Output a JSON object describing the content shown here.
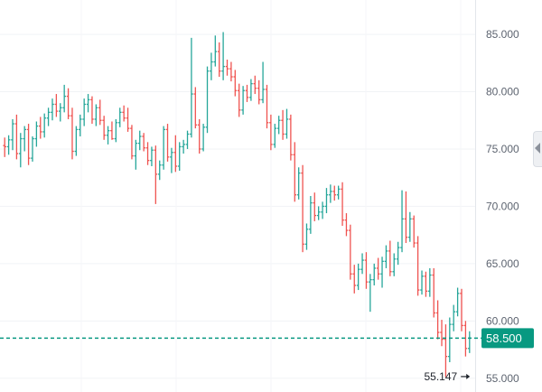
{
  "chart_data": {
    "type": "ohlc",
    "title": "",
    "xlabel": "",
    "ylabel": "",
    "ylim": [
      53.8,
      88
    ],
    "grid": true,
    "colors": {
      "up": "#26a69a",
      "down": "#ef5350",
      "price_line": "#089981",
      "badge": "#089981"
    },
    "y_ticks": [
      "55.000",
      "60.000",
      "65.000",
      "70.000",
      "75.000",
      "80.000",
      "85.000"
    ],
    "current_price": "58.500",
    "annotations": [
      {
        "text": "55.147",
        "value": 55.147,
        "bar_index": 118,
        "arrow": "right"
      }
    ],
    "bars": [
      [
        75.3,
        76.0,
        74.3,
        75.2
      ],
      [
        75.2,
        76.2,
        74.5,
        75.8
      ],
      [
        75.8,
        77.6,
        74.9,
        77.2
      ],
      [
        77.2,
        78.0,
        74.1,
        74.6
      ],
      [
        74.6,
        76.4,
        73.4,
        75.9
      ],
      [
        75.9,
        77.0,
        74.8,
        76.7
      ],
      [
        76.7,
        77.2,
        73.6,
        74.2
      ],
      [
        74.2,
        76.1,
        73.9,
        75.9
      ],
      [
        75.9,
        77.4,
        75.2,
        77.0
      ],
      [
        77.0,
        77.8,
        75.9,
        76.5
      ],
      [
        76.5,
        78.1,
        76.0,
        77.7
      ],
      [
        77.7,
        78.6,
        77.0,
        78.2
      ],
      [
        78.2,
        79.4,
        77.5,
        78.9
      ],
      [
        78.9,
        79.8,
        77.8,
        78.3
      ],
      [
        78.3,
        79.0,
        77.4,
        78.6
      ],
      [
        78.6,
        80.6,
        78.2,
        79.6
      ],
      [
        79.6,
        80.3,
        77.6,
        77.9
      ],
      [
        77.9,
        78.6,
        74.1,
        74.8
      ],
      [
        74.8,
        77.0,
        74.4,
        76.7
      ],
      [
        76.7,
        78.0,
        76.1,
        77.6
      ],
      [
        77.6,
        79.4,
        77.0,
        78.9
      ],
      [
        78.9,
        79.8,
        78.2,
        79.3
      ],
      [
        79.3,
        79.6,
        77.2,
        77.6
      ],
      [
        77.6,
        78.9,
        77.0,
        78.6
      ],
      [
        78.6,
        79.3,
        77.1,
        77.5
      ],
      [
        77.5,
        77.9,
        75.8,
        76.2
      ],
      [
        76.2,
        77.0,
        75.4,
        76.6
      ],
      [
        76.6,
        77.4,
        75.8,
        75.9
      ],
      [
        75.9,
        77.6,
        75.6,
        77.3
      ],
      [
        77.3,
        78.6,
        76.9,
        78.2
      ],
      [
        78.2,
        78.8,
        77.4,
        77.7
      ],
      [
        77.7,
        78.6,
        76.5,
        76.8
      ],
      [
        76.8,
        77.1,
        74.1,
        74.4
      ],
      [
        74.4,
        75.8,
        73.2,
        75.5
      ],
      [
        75.5,
        76.6,
        74.9,
        76.1
      ],
      [
        76.1,
        76.4,
        74.8,
        75.1
      ],
      [
        75.1,
        75.6,
        73.6,
        74.0
      ],
      [
        74.0,
        75.2,
        73.5,
        74.9
      ],
      [
        74.9,
        75.3,
        70.2,
        72.8
      ],
      [
        72.8,
        74.0,
        72.3,
        73.6
      ],
      [
        73.6,
        77.0,
        73.2,
        76.7
      ],
      [
        76.7,
        77.2,
        73.9,
        74.3
      ],
      [
        74.3,
        75.1,
        72.9,
        74.7
      ],
      [
        74.7,
        76.2,
        73.0,
        73.5
      ],
      [
        73.5,
        75.6,
        73.1,
        75.2
      ],
      [
        75.2,
        75.8,
        74.6,
        75.4
      ],
      [
        75.4,
        76.6,
        75.0,
        76.3
      ],
      [
        76.3,
        84.7,
        76.0,
        79.8
      ],
      [
        79.8,
        80.4,
        76.8,
        77.1
      ],
      [
        77.1,
        77.6,
        74.6,
        75.0
      ],
      [
        75.0,
        77.2,
        74.8,
        76.9
      ],
      [
        76.9,
        82.2,
        76.4,
        81.8
      ],
      [
        81.8,
        83.4,
        81.0,
        82.6
      ],
      [
        82.6,
        84.9,
        82.2,
        83.5
      ],
      [
        83.5,
        84.3,
        81.3,
        81.8
      ],
      [
        81.8,
        85.2,
        81.0,
        82.2
      ],
      [
        82.2,
        82.8,
        81.4,
        82.0
      ],
      [
        82.0,
        82.6,
        80.9,
        81.3
      ],
      [
        81.3,
        81.9,
        79.6,
        80.1
      ],
      [
        80.1,
        80.7,
        77.8,
        78.4
      ],
      [
        78.4,
        80.5,
        78.0,
        80.1
      ],
      [
        80.1,
        80.6,
        79.1,
        79.5
      ],
      [
        79.5,
        81.1,
        79.2,
        80.7
      ],
      [
        80.7,
        81.4,
        79.8,
        80.3
      ],
      [
        80.3,
        81.0,
        78.9,
        79.3
      ],
      [
        79.3,
        82.6,
        79.0,
        80.2
      ],
      [
        80.2,
        80.6,
        76.8,
        77.3
      ],
      [
        77.3,
        78.0,
        74.9,
        75.4
      ],
      [
        75.4,
        77.2,
        75.1,
        76.8
      ],
      [
        76.8,
        77.9,
        76.3,
        77.5
      ],
      [
        77.5,
        78.4,
        75.8,
        76.3
      ],
      [
        76.3,
        78.5,
        75.9,
        77.6
      ],
      [
        77.6,
        78.0,
        74.0,
        74.5
      ],
      [
        74.5,
        75.6,
        70.4,
        71.0
      ],
      [
        71.0,
        73.4,
        70.6,
        72.9
      ],
      [
        72.9,
        73.6,
        66.0,
        66.7
      ],
      [
        66.7,
        68.5,
        66.2,
        68.0
      ],
      [
        68.0,
        70.9,
        67.6,
        70.3
      ],
      [
        70.3,
        71.2,
        68.7,
        69.2
      ],
      [
        69.2,
        70.0,
        68.8,
        69.5
      ],
      [
        69.5,
        70.4,
        68.9,
        70.0
      ],
      [
        70.0,
        71.6,
        69.4,
        71.0
      ],
      [
        71.0,
        71.9,
        70.3,
        71.3
      ],
      [
        71.3,
        71.8,
        70.5,
        71.0
      ],
      [
        71.0,
        71.8,
        70.6,
        71.5
      ],
      [
        71.5,
        72.1,
        68.3,
        68.8
      ],
      [
        68.8,
        69.4,
        67.4,
        67.9
      ],
      [
        67.9,
        68.4,
        63.6,
        64.1
      ],
      [
        64.1,
        64.9,
        62.4,
        63.1
      ],
      [
        63.1,
        65.0,
        62.7,
        64.5
      ],
      [
        64.5,
        65.9,
        64.1,
        65.3
      ],
      [
        65.3,
        66.0,
        62.8,
        63.4
      ],
      [
        63.4,
        64.1,
        60.8,
        63.6
      ],
      [
        63.6,
        65.0,
        63.1,
        64.6
      ],
      [
        64.6,
        65.5,
        63.6,
        64.1
      ],
      [
        64.1,
        65.6,
        62.9,
        65.2
      ],
      [
        65.2,
        66.6,
        64.6,
        66.1
      ],
      [
        66.1,
        67.0,
        63.9,
        64.3
      ],
      [
        64.3,
        65.9,
        63.9,
        65.4
      ],
      [
        65.4,
        66.9,
        64.9,
        66.4
      ],
      [
        66.4,
        71.4,
        66.0,
        68.9
      ],
      [
        68.9,
        71.3,
        66.8,
        67.3
      ],
      [
        67.3,
        69.5,
        66.9,
        68.9
      ],
      [
        68.9,
        69.2,
        66.4,
        66.8
      ],
      [
        66.8,
        67.4,
        62.2,
        62.7
      ],
      [
        62.7,
        64.4,
        62.3,
        63.9
      ],
      [
        63.9,
        64.3,
        62.1,
        62.6
      ],
      [
        62.6,
        64.6,
        62.1,
        64.0
      ],
      [
        64.0,
        64.6,
        60.3,
        60.7
      ],
      [
        60.7,
        61.8,
        58.4,
        59.0
      ],
      [
        59.0,
        60.1,
        57.8,
        58.4
      ],
      [
        58.4,
        59.7,
        55.1,
        56.9
      ],
      [
        56.9,
        60.3,
        56.4,
        59.7
      ],
      [
        59.7,
        61.4,
        59.1,
        60.8
      ],
      [
        60.8,
        62.9,
        60.4,
        62.4
      ],
      [
        62.4,
        62.8,
        59.1,
        59.6
      ],
      [
        59.6,
        60.0,
        56.9,
        57.6
      ],
      [
        57.6,
        59.1,
        57.2,
        58.5
      ]
    ]
  }
}
